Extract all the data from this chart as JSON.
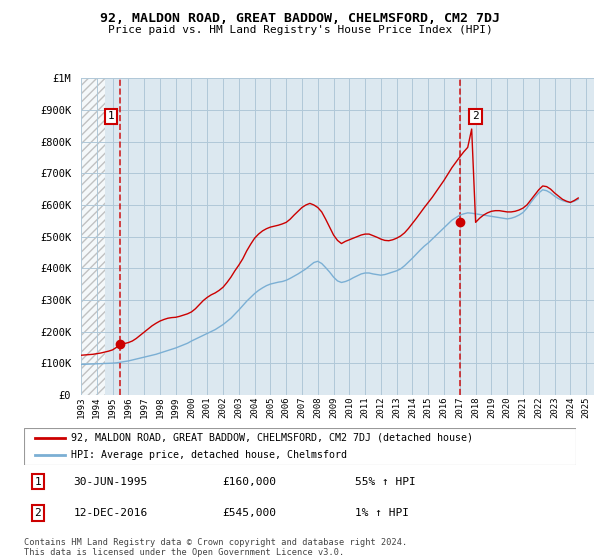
{
  "title": "92, MALDON ROAD, GREAT BADDOW, CHELMSFORD, CM2 7DJ",
  "subtitle": "Price paid vs. HM Land Registry's House Price Index (HPI)",
  "property_label": "92, MALDON ROAD, GREAT BADDOW, CHELMSFORD, CM2 7DJ (detached house)",
  "hpi_label": "HPI: Average price, detached house, Chelmsford",
  "sale1_date": "30-JUN-1995",
  "sale1_price": "£160,000",
  "sale1_hpi": "55% ↑ HPI",
  "sale2_date": "12-DEC-2016",
  "sale2_price": "£545,000",
  "sale2_hpi": "1% ↑ HPI",
  "copyright": "Contains HM Land Registry data © Crown copyright and database right 2024.\nThis data is licensed under the Open Government Licence v3.0.",
  "property_color": "#cc0000",
  "hpi_color": "#7bafd4",
  "plot_bg_color": "#dce8f0",
  "grid_color": "#b0c8d8",
  "ylim": [
    0,
    1000000
  ],
  "yticks": [
    0,
    100000,
    200000,
    300000,
    400000,
    500000,
    600000,
    700000,
    800000,
    900000,
    1000000
  ],
  "ytick_labels": [
    "£0",
    "£100K",
    "£200K",
    "£300K",
    "£400K",
    "£500K",
    "£600K",
    "£700K",
    "£800K",
    "£900K",
    "£1M"
  ],
  "xlim_start": 1993.0,
  "xlim_end": 2025.5,
  "xtick_years": [
    1993,
    1994,
    1995,
    1996,
    1997,
    1998,
    1999,
    2000,
    2001,
    2002,
    2003,
    2004,
    2005,
    2006,
    2007,
    2008,
    2009,
    2010,
    2011,
    2012,
    2013,
    2014,
    2015,
    2016,
    2017,
    2018,
    2019,
    2020,
    2021,
    2022,
    2023,
    2024,
    2025
  ],
  "sale1_x": 1995.5,
  "sale1_y": 160000,
  "sale2_x": 2017.0,
  "sale2_y": 545000,
  "hpi_x": [
    1993.0,
    1993.25,
    1993.5,
    1993.75,
    1994.0,
    1994.25,
    1994.5,
    1994.75,
    1995.0,
    1995.25,
    1995.5,
    1995.75,
    1996.0,
    1996.25,
    1996.5,
    1996.75,
    1997.0,
    1997.25,
    1997.5,
    1997.75,
    1998.0,
    1998.25,
    1998.5,
    1998.75,
    1999.0,
    1999.25,
    1999.5,
    1999.75,
    2000.0,
    2000.25,
    2000.5,
    2000.75,
    2001.0,
    2001.25,
    2001.5,
    2001.75,
    2002.0,
    2002.25,
    2002.5,
    2002.75,
    2003.0,
    2003.25,
    2003.5,
    2003.75,
    2004.0,
    2004.25,
    2004.5,
    2004.75,
    2005.0,
    2005.25,
    2005.5,
    2005.75,
    2006.0,
    2006.25,
    2006.5,
    2006.75,
    2007.0,
    2007.25,
    2007.5,
    2007.75,
    2008.0,
    2008.25,
    2008.5,
    2008.75,
    2009.0,
    2009.25,
    2009.5,
    2009.75,
    2010.0,
    2010.25,
    2010.5,
    2010.75,
    2011.0,
    2011.25,
    2011.5,
    2011.75,
    2012.0,
    2012.25,
    2012.5,
    2012.75,
    2013.0,
    2013.25,
    2013.5,
    2013.75,
    2014.0,
    2014.25,
    2014.5,
    2014.75,
    2015.0,
    2015.25,
    2015.5,
    2015.75,
    2016.0,
    2016.25,
    2016.5,
    2016.75,
    2017.0,
    2017.25,
    2017.5,
    2017.75,
    2018.0,
    2018.25,
    2018.5,
    2018.75,
    2019.0,
    2019.25,
    2019.5,
    2019.75,
    2020.0,
    2020.25,
    2020.5,
    2020.75,
    2021.0,
    2021.25,
    2021.5,
    2021.75,
    2022.0,
    2022.25,
    2022.5,
    2022.75,
    2023.0,
    2023.25,
    2023.5,
    2023.75,
    2024.0,
    2024.25,
    2024.5
  ],
  "hpi_y": [
    96000,
    96500,
    97000,
    97500,
    98000,
    98500,
    99000,
    99500,
    100000,
    101000,
    103000,
    105000,
    107000,
    110000,
    113000,
    116000,
    119000,
    122000,
    125000,
    128000,
    132000,
    136000,
    140000,
    144000,
    148000,
    153000,
    158000,
    163000,
    170000,
    176000,
    182000,
    188000,
    194000,
    200000,
    206000,
    214000,
    222000,
    232000,
    242000,
    255000,
    268000,
    282000,
    296000,
    308000,
    320000,
    330000,
    338000,
    345000,
    350000,
    353000,
    356000,
    358000,
    362000,
    368000,
    375000,
    382000,
    390000,
    398000,
    408000,
    418000,
    422000,
    415000,
    402000,
    388000,
    372000,
    360000,
    355000,
    358000,
    363000,
    370000,
    376000,
    382000,
    385000,
    385000,
    382000,
    380000,
    378000,
    380000,
    384000,
    388000,
    392000,
    398000,
    408000,
    420000,
    432000,
    445000,
    458000,
    470000,
    480000,
    492000,
    504000,
    516000,
    528000,
    540000,
    552000,
    560000,
    568000,
    572000,
    575000,
    574000,
    572000,
    570000,
    568000,
    566000,
    564000,
    562000,
    560000,
    558000,
    556000,
    558000,
    562000,
    568000,
    576000,
    590000,
    608000,
    624000,
    638000,
    648000,
    645000,
    638000,
    628000,
    620000,
    614000,
    610000,
    608000,
    612000,
    618000
  ],
  "prop_y": [
    125000,
    126000,
    127000,
    128000,
    130000,
    132000,
    135000,
    138000,
    142000,
    150000,
    160000,
    162000,
    165000,
    170000,
    178000,
    188000,
    198000,
    208000,
    218000,
    226000,
    233000,
    238000,
    242000,
    244000,
    245000,
    248000,
    252000,
    256000,
    262000,
    272000,
    285000,
    298000,
    308000,
    316000,
    322000,
    330000,
    340000,
    355000,
    372000,
    392000,
    410000,
    430000,
    455000,
    476000,
    495000,
    508000,
    518000,
    525000,
    530000,
    533000,
    536000,
    540000,
    545000,
    555000,
    568000,
    580000,
    592000,
    600000,
    605000,
    600000,
    592000,
    578000,
    555000,
    530000,
    505000,
    488000,
    478000,
    485000,
    490000,
    495000,
    500000,
    505000,
    508000,
    508000,
    503000,
    498000,
    492000,
    488000,
    487000,
    490000,
    495000,
    502000,
    512000,
    526000,
    542000,
    558000,
    575000,
    592000,
    608000,
    624000,
    642000,
    660000,
    678000,
    698000,
    718000,
    735000,
    752000,
    768000,
    782000,
    840000,
    545000,
    558000,
    568000,
    575000,
    580000,
    582000,
    582000,
    580000,
    578000,
    578000,
    580000,
    584000,
    590000,
    600000,
    616000,
    632000,
    648000,
    660000,
    658000,
    650000,
    638000,
    628000,
    618000,
    612000,
    608000,
    614000,
    622000
  ]
}
